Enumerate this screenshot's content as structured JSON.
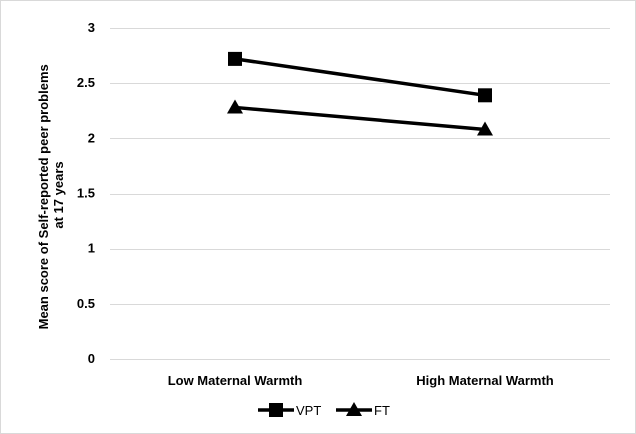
{
  "chart_data": {
    "type": "line",
    "categories": [
      "Low Maternal Warmth",
      "High Maternal Warmth"
    ],
    "series": [
      {
        "name": "VPT",
        "values": [
          2.72,
          2.39
        ],
        "marker": "square",
        "color": "#000000"
      },
      {
        "name": "FT",
        "values": [
          2.28,
          2.08
        ],
        "marker": "triangle",
        "color": "#000000"
      }
    ],
    "ylabel_lines": [
      "Mean score of Self-reported peer problems",
      "at 17 years"
    ],
    "xlabel": "",
    "title": "",
    "ylim": [
      0,
      3
    ],
    "yticks": [
      "0",
      "0.5",
      "1",
      "1.5",
      "2",
      "2.5",
      "3"
    ],
    "grid": true,
    "legend_position": "bottom"
  }
}
